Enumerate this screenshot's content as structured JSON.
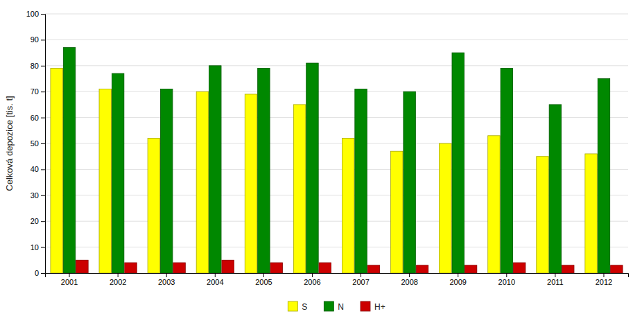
{
  "chart_data": {
    "type": "bar",
    "y_label": "Celková depozice [tis. t]",
    "categories": [
      "2001",
      "2002",
      "2003",
      "2004",
      "2005",
      "2006",
      "2007",
      "2008",
      "2009",
      "2010",
      "2011",
      "2012"
    ],
    "series": [
      {
        "name": "S",
        "color": "#ffff00",
        "values": [
          79,
          71,
          52,
          70,
          69,
          65,
          52,
          47,
          50,
          53,
          45,
          46
        ]
      },
      {
        "name": "N",
        "color": "#008800",
        "values": [
          87,
          77,
          71,
          80,
          79,
          81,
          71,
          70,
          85,
          79,
          65,
          75
        ]
      },
      {
        "name": "H+",
        "color": "#cc0000",
        "values": [
          5,
          4,
          4,
          5,
          4,
          4,
          3,
          3,
          3,
          4,
          3,
          3
        ]
      }
    ],
    "ylim": [
      0,
      100
    ],
    "yticks": [
      0,
      10,
      20,
      30,
      40,
      50,
      60,
      70,
      80,
      90,
      100
    ],
    "grid": true,
    "legend": "bottom"
  }
}
